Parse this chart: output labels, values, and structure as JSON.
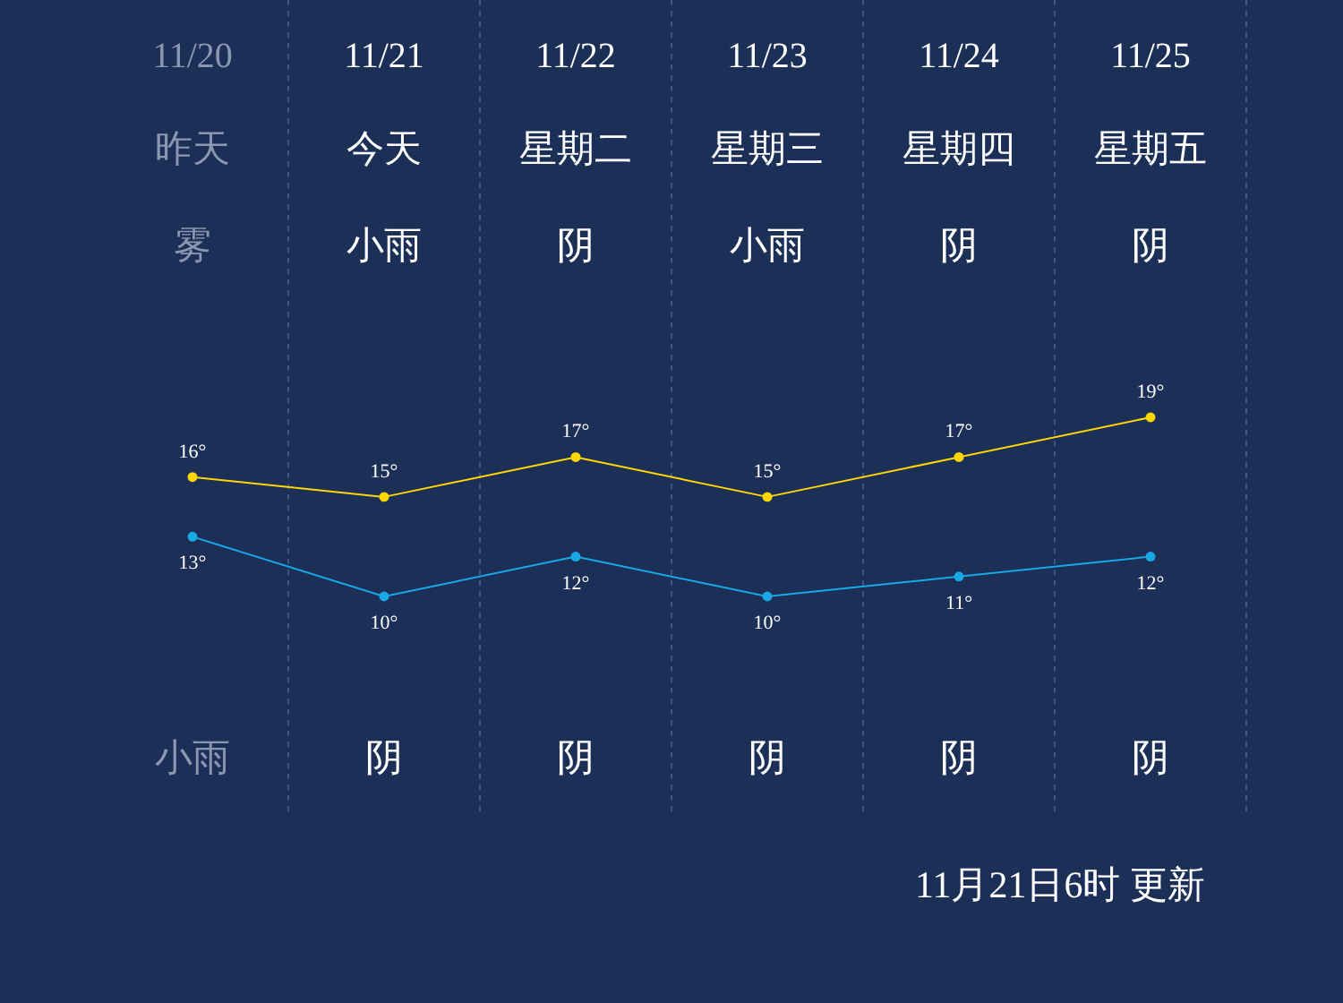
{
  "chart_data": {
    "type": "line",
    "categories": [
      "11/20",
      "11/21",
      "11/22",
      "11/23",
      "11/24",
      "11/25"
    ],
    "series": [
      {
        "color": "#ffd700",
        "values": [
          16,
          15,
          17,
          15,
          17,
          19
        ],
        "value_labels": [
          "16°",
          "15°",
          "17°",
          "15°",
          "17°",
          "19°"
        ]
      },
      {
        "color": "#1aa7e6",
        "values": [
          13,
          10,
          12,
          10,
          11,
          12
        ],
        "value_labels": [
          "13°",
          "10°",
          "12°",
          "10°",
          "11°",
          "12°"
        ]
      }
    ],
    "marker": "circle",
    "grid": "x",
    "annotations": [
      "昨天",
      "今天",
      "星期二",
      "星期三",
      "星期四",
      "星期五",
      "雾",
      "小雨",
      "阴",
      "小雨",
      "阴",
      "阴",
      "小雨",
      "阴",
      "阴",
      "阴",
      "阴",
      "阴",
      "11月21日6时 更新"
    ]
  }
}
